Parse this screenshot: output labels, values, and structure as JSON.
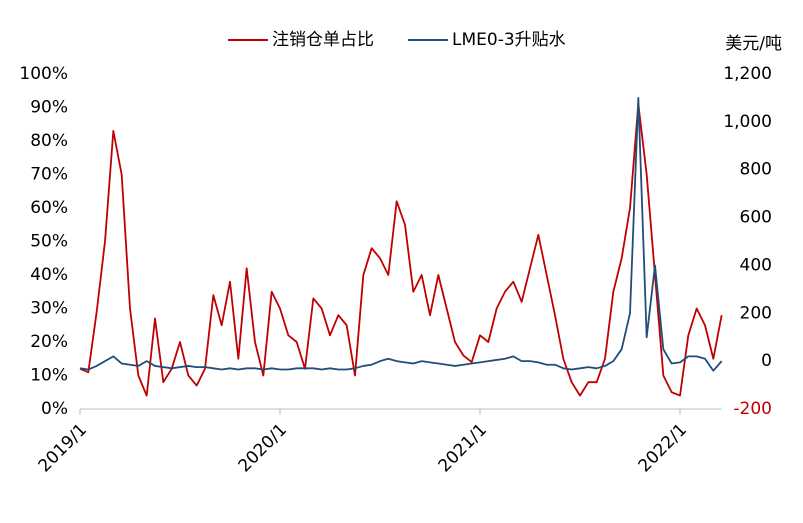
{
  "chart_data": {
    "type": "line",
    "y2_title": "美元/吨",
    "categories": [
      "2019/1",
      null,
      null,
      null,
      null,
      null,
      null,
      null,
      null,
      null,
      null,
      null,
      null,
      null,
      null,
      null,
      null,
      null,
      null,
      null,
      null,
      null,
      null,
      null,
      "2020/1",
      null,
      null,
      null,
      null,
      null,
      null,
      null,
      null,
      null,
      null,
      null,
      null,
      null,
      null,
      null,
      null,
      null,
      null,
      null,
      null,
      null,
      null,
      null,
      "2021/1",
      null,
      null,
      null,
      null,
      null,
      null,
      null,
      null,
      null,
      null,
      null,
      null,
      null,
      null,
      null,
      null,
      null,
      null,
      null,
      null,
      null,
      null,
      null,
      "2022/1",
      null,
      null,
      null,
      null,
      null
    ],
    "series": [
      {
        "name": "注销仓单占比",
        "color": "#c00000",
        "values": [
          12,
          11,
          29,
          50,
          83,
          70,
          30,
          10,
          4,
          27,
          8,
          12,
          20,
          10,
          7,
          12,
          34,
          25,
          38,
          15,
          42,
          20,
          10,
          35,
          30,
          22,
          20,
          12,
          33,
          30,
          22,
          28,
          25,
          10,
          40,
          48,
          45,
          40,
          62,
          55,
          35,
          40,
          28,
          40,
          30,
          20,
          16,
          14,
          22,
          20,
          30,
          35,
          38,
          32,
          42,
          52,
          40,
          28,
          15,
          8,
          4,
          8,
          8,
          15,
          35,
          45,
          60,
          91,
          70,
          40,
          10,
          5,
          4,
          22,
          30,
          25,
          15,
          28
        ]
      },
      {
        "name": "LME0-3升贴水",
        "color": "#1f4e79",
        "axis": "y2",
        "values": [
          -30,
          -35,
          -20,
          0,
          20,
          -10,
          -15,
          -20,
          0,
          -20,
          -25,
          -30,
          -25,
          -20,
          -25,
          -25,
          -30,
          -35,
          -30,
          -35,
          -30,
          -30,
          -35,
          -30,
          -35,
          -35,
          -30,
          -30,
          -30,
          -35,
          -30,
          -35,
          -35,
          -30,
          -20,
          -15,
          0,
          10,
          0,
          -5,
          -10,
          0,
          -5,
          -10,
          -15,
          -20,
          -15,
          -10,
          -5,
          0,
          5,
          10,
          20,
          0,
          0,
          -5,
          -15,
          -15,
          -30,
          -35,
          -30,
          -25,
          -30,
          -20,
          0,
          50,
          200,
          1100,
          100,
          400,
          50,
          -10,
          -5,
          20,
          20,
          10,
          -40,
          0
        ]
      }
    ],
    "ylim": [
      0,
      100
    ],
    "yticks": [
      {
        "value": 0,
        "label": "0%"
      },
      {
        "value": 10,
        "label": "10%"
      },
      {
        "value": 20,
        "label": "20%"
      },
      {
        "value": 30,
        "label": "30%"
      },
      {
        "value": 40,
        "label": "40%"
      },
      {
        "value": 50,
        "label": "50%"
      },
      {
        "value": 60,
        "label": "60%"
      },
      {
        "value": 70,
        "label": "70%"
      },
      {
        "value": 80,
        "label": "80%"
      },
      {
        "value": 90,
        "label": "90%"
      },
      {
        "value": 100,
        "label": "100%"
      }
    ],
    "y2lim": [
      -200,
      1200
    ],
    "y2ticks": [
      -200,
      0,
      200,
      400,
      600,
      800,
      {
        "value": 1000,
        "label": "1,000"
      },
      {
        "value": 1200,
        "label": "1,200"
      }
    ],
    "grid": false,
    "legend": "top"
  }
}
